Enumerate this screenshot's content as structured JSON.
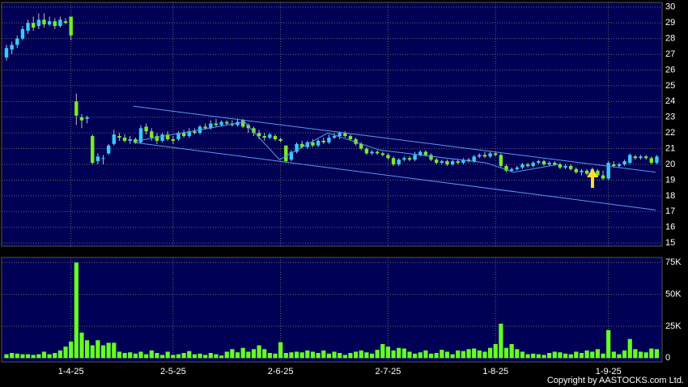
{
  "chart_data": [
    {
      "type": "candlestick",
      "up_color": "#33ccff",
      "down_color": "#77ee22",
      "grid": true,
      "ylim": [
        14.8,
        30.3
      ],
      "yticks": [
        15,
        16,
        17,
        18,
        19,
        20,
        21,
        22,
        23,
        24,
        25,
        26,
        27,
        28,
        29,
        30
      ],
      "open": [
        26.8,
        27.3,
        27.6,
        28.0,
        28.5,
        29.0,
        28.8,
        29.2,
        28.9,
        29.1,
        28.8,
        29.1,
        29.4,
        24.0,
        23.0,
        22.9,
        21.8,
        20.2,
        20.4,
        20.7,
        21.3,
        21.8,
        21.7,
        21.5,
        21.6,
        21.4,
        22.4,
        22.1,
        21.8,
        21.5,
        21.9,
        21.6,
        21.6,
        22.0,
        21.8,
        22.1,
        22.0,
        22.4,
        22.3,
        22.6,
        22.5,
        22.7,
        22.6,
        22.5,
        22.8,
        22.5,
        22.3,
        22.0,
        21.8,
        21.7,
        21.8,
        21.6,
        21.2,
        20.3,
        20.8,
        21.3,
        21.1,
        21.4,
        21.2,
        21.5,
        21.4,
        21.7,
        21.8,
        22.0,
        21.8,
        21.6,
        21.3,
        21.0,
        20.7,
        20.8,
        20.7,
        20.6,
        20.4,
        20.0,
        20.3,
        20.4,
        20.3,
        20.6,
        20.8,
        20.6,
        20.3,
        20.1,
        20.2,
        20.0,
        20.2,
        20.1,
        20.3,
        20.2,
        20.5,
        20.6,
        20.5,
        20.7,
        20.6,
        19.9,
        19.6,
        19.7,
        19.8,
        20.0,
        19.9,
        20.1,
        20.2,
        20.0,
        20.1,
        20.0,
        19.8,
        19.9,
        19.7,
        19.5,
        19.6,
        19.4,
        19.6,
        19.3,
        19.1,
        20.0,
        19.9,
        20.0,
        20.1,
        20.5,
        20.4,
        20.5,
        20.4,
        20.1
      ],
      "high": [
        27.6,
        27.8,
        28.2,
        28.8,
        29.2,
        29.4,
        29.6,
        29.6,
        29.4,
        29.3,
        29.4,
        29.3,
        29.4,
        24.5,
        23.2,
        23.1,
        21.9,
        20.7,
        20.6,
        21.3,
        22.2,
        22.0,
        21.9,
        21.8,
        21.7,
        22.5,
        22.6,
        22.3,
        22.0,
        22.0,
        22.1,
        21.8,
        22.1,
        22.2,
        22.3,
        22.3,
        22.5,
        22.6,
        22.8,
        22.9,
        22.8,
        22.8,
        22.8,
        22.9,
        22.9,
        22.6,
        22.4,
        22.2,
        22.0,
        22.0,
        21.9,
        21.7,
        21.2,
        20.9,
        21.4,
        21.5,
        21.5,
        21.6,
        21.6,
        21.7,
        21.9,
        22.0,
        22.1,
        22.1,
        21.9,
        21.7,
        21.4,
        21.1,
        20.9,
        20.9,
        20.8,
        20.7,
        20.5,
        20.4,
        20.5,
        20.5,
        20.8,
        20.9,
        20.9,
        20.7,
        20.4,
        20.3,
        20.3,
        20.3,
        20.3,
        20.4,
        20.4,
        20.6,
        20.7,
        20.8,
        20.8,
        20.8,
        20.7,
        20.0,
        19.8,
        19.9,
        20.1,
        20.1,
        20.2,
        20.3,
        20.3,
        20.2,
        20.2,
        20.1,
        20.0,
        20.0,
        19.8,
        19.7,
        19.7,
        19.8,
        19.7,
        19.6,
        20.2,
        20.2,
        20.1,
        20.3,
        20.7,
        20.6,
        20.6,
        20.6,
        20.5,
        20.6
      ],
      "low": [
        26.6,
        27.0,
        27.4,
        27.9,
        28.3,
        28.5,
        28.6,
        28.7,
        28.8,
        28.6,
        28.7,
        28.9,
        27.9,
        22.5,
        22.3,
        22.6,
        20.0,
        20.0,
        20.0,
        20.6,
        21.2,
        21.5,
        21.4,
        21.3,
        21.3,
        21.3,
        21.9,
        21.5,
        21.3,
        21.4,
        21.5,
        21.3,
        21.5,
        21.7,
        21.7,
        21.9,
        21.9,
        22.2,
        22.2,
        22.4,
        22.4,
        22.5,
        22.4,
        22.4,
        22.3,
        22.0,
        21.8,
        21.6,
        21.5,
        21.6,
        21.5,
        21.4,
        20.1,
        20.2,
        20.7,
        21.0,
        21.0,
        21.1,
        21.1,
        21.3,
        21.3,
        21.6,
        21.6,
        21.7,
        21.5,
        21.2,
        20.9,
        20.6,
        20.6,
        20.6,
        20.5,
        20.3,
        19.9,
        19.9,
        20.2,
        20.2,
        20.2,
        20.5,
        20.5,
        20.2,
        20.0,
        20.0,
        19.9,
        19.9,
        20.0,
        20.0,
        20.1,
        20.1,
        20.4,
        20.4,
        20.4,
        20.5,
        19.8,
        19.5,
        19.5,
        19.6,
        19.7,
        19.8,
        19.8,
        20.0,
        19.9,
        19.9,
        19.9,
        19.7,
        19.7,
        19.6,
        19.4,
        19.3,
        19.3,
        19.3,
        19.2,
        19.0,
        19.0,
        19.8,
        19.8,
        19.9,
        20.0,
        20.3,
        20.3,
        20.3,
        20.0,
        20.0
      ],
      "close": [
        27.4,
        27.6,
        28.0,
        28.6,
        29.0,
        28.7,
        29.2,
        28.9,
        29.1,
        28.8,
        29.2,
        29.0,
        28.2,
        23.1,
        22.8,
        23.0,
        20.1,
        20.5,
        20.4,
        21.2,
        21.9,
        21.7,
        21.5,
        21.6,
        21.4,
        22.3,
        22.1,
        21.7,
        21.5,
        21.9,
        21.6,
        21.5,
        22.0,
        21.8,
        22.1,
        22.0,
        22.4,
        22.3,
        22.6,
        22.5,
        22.7,
        22.6,
        22.5,
        22.7,
        22.4,
        22.3,
        22.0,
        21.8,
        21.7,
        21.9,
        21.6,
        21.5,
        20.2,
        20.8,
        21.3,
        21.1,
        21.4,
        21.2,
        21.5,
        21.4,
        21.7,
        21.8,
        22.0,
        21.8,
        21.6,
        21.3,
        21.0,
        20.7,
        20.8,
        20.7,
        20.6,
        20.4,
        20.0,
        20.3,
        20.4,
        20.3,
        20.6,
        20.8,
        20.6,
        20.3,
        20.1,
        20.2,
        20.0,
        20.2,
        20.1,
        20.3,
        20.2,
        20.5,
        20.6,
        20.5,
        20.7,
        20.6,
        19.9,
        19.6,
        19.7,
        19.8,
        20.0,
        19.9,
        20.1,
        20.2,
        20.0,
        20.1,
        20.0,
        19.8,
        19.9,
        19.7,
        19.5,
        19.6,
        19.4,
        19.7,
        19.3,
        19.1,
        20.1,
        19.9,
        20.0,
        20.2,
        20.6,
        20.4,
        20.5,
        20.4,
        20.1,
        20.5
      ],
      "line_color": "#5a9ae8",
      "lines": [
        {
          "x": [
            23.6,
            120.8
          ],
          "y": [
            23.7,
            19.5
          ]
        },
        {
          "x": [
            23.6,
            120.8
          ],
          "y": [
            21.4,
            17.1
          ]
        },
        {
          "x": [
            24.4,
            44.3,
            50.8,
            59.8,
            69.6,
            89.2,
            94.4,
            102.7
          ],
          "y": [
            21.5,
            22.7,
            20.3,
            22.0,
            20.9,
            20.1,
            19.5,
            20.0
          ]
        }
      ]
    },
    {
      "type": "bar",
      "color": "#66ff22",
      "grid": true,
      "ylim": [
        -3000,
        79000
      ],
      "yticks": [
        0,
        {
          "value": 25000,
          "label": "25K"
        },
        {
          "value": 50000,
          "label": "50K"
        },
        {
          "value": 75000,
          "label": "75K"
        }
      ],
      "categories": [
        null,
        null,
        null,
        null,
        null,
        null,
        null,
        null,
        null,
        null,
        null,
        null,
        "1-4-25",
        null,
        null,
        null,
        null,
        null,
        null,
        null,
        null,
        null,
        null,
        null,
        null,
        null,
        null,
        null,
        null,
        null,
        null,
        "2-5-25",
        null,
        null,
        null,
        null,
        null,
        null,
        null,
        null,
        null,
        null,
        null,
        null,
        null,
        null,
        null,
        null,
        null,
        null,
        null,
        "2-6-25",
        null,
        null,
        null,
        null,
        null,
        null,
        null,
        null,
        null,
        null,
        null,
        null,
        null,
        null,
        null,
        null,
        null,
        null,
        null,
        "2-7-25",
        null,
        null,
        null,
        null,
        null,
        null,
        null,
        null,
        null,
        null,
        null,
        null,
        null,
        null,
        null,
        null,
        null,
        null,
        null,
        "1-8-25",
        null,
        null,
        null,
        null,
        null,
        null,
        null,
        null,
        null,
        null,
        null,
        null,
        null,
        null,
        null,
        null,
        null,
        null,
        null,
        null,
        "1-9-25",
        null,
        null,
        null,
        null,
        null,
        null,
        null,
        null,
        null
      ],
      "values": [
        3000,
        4000,
        3500,
        3000,
        3000,
        2500,
        3000,
        5000,
        3000,
        4000,
        6000,
        9000,
        13000,
        75000,
        20000,
        14000,
        10000,
        14000,
        10000,
        12000,
        12000,
        5000,
        4000,
        4500,
        3500,
        5000,
        3000,
        6000,
        4000,
        2500,
        5000,
        2500,
        3000,
        4000,
        5500,
        3000,
        3500,
        2500,
        4000,
        3000,
        2000,
        5000,
        7000,
        4500,
        8000,
        5000,
        7000,
        10000,
        7000,
        4000,
        3500,
        12500,
        4000,
        4500,
        5000,
        4500,
        6000,
        5000,
        4000,
        6000,
        3500,
        5000,
        4000,
        2500,
        4000,
        5000,
        6000,
        4500,
        3500,
        6500,
        11000,
        9000,
        6000,
        8000,
        7500,
        5000,
        3500,
        4500,
        6000,
        3500,
        4000,
        6500,
        5000,
        3000,
        6000,
        5500,
        7000,
        7500,
        6000,
        5000,
        8000,
        11000,
        27000,
        8000,
        11000,
        7000,
        5000,
        3000,
        3500,
        3000,
        2500,
        4000,
        5000,
        4500,
        3500,
        3000,
        5000,
        4000,
        6000,
        5000,
        7000,
        3500,
        22000,
        5000,
        3000,
        6000,
        15000,
        7000,
        5000,
        4500,
        7500,
        7000
      ]
    },
    {
      "type": "text",
      "copyright": "Copyright by AASTOCKS.com Ltd."
    }
  ]
}
